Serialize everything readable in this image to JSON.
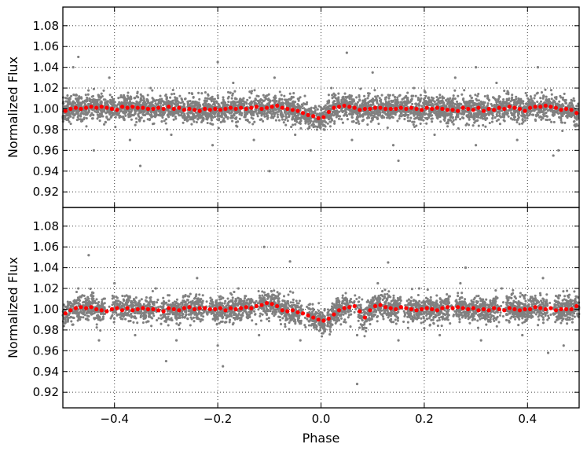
{
  "chart_data": [
    {
      "type": "scatter",
      "panel": "top",
      "xlabel": "",
      "ylabel": "Normalized Flux",
      "xlim": [
        -0.5,
        0.5
      ],
      "ylim": [
        0.905,
        1.098
      ],
      "xticks": [
        -0.4,
        -0.2,
        0.0,
        0.2,
        0.4
      ],
      "yticks": [
        0.92,
        0.94,
        0.96,
        0.98,
        1.0,
        1.02,
        1.04,
        1.06,
        1.08
      ],
      "xtick_labels": [],
      "ytick_labels": [
        "0.92",
        "0.94",
        "0.96",
        "0.98",
        "1.00",
        "1.02",
        "1.04",
        "1.06",
        "1.08"
      ],
      "grid": true,
      "colors": {
        "raw": "#808080",
        "binned": "#ff0000"
      },
      "series": [
        {
          "marker": "small-gray-dots",
          "color": "#808080",
          "x": [
            -0.48,
            -0.44,
            -0.41,
            -0.37,
            -0.33,
            -0.29,
            -0.25,
            -0.21,
            -0.17,
            -0.13,
            -0.09,
            -0.05,
            -0.02,
            0.02,
            0.06,
            0.1,
            0.14,
            0.18,
            0.22,
            0.26,
            0.3,
            0.34,
            0.38,
            0.42,
            0.46,
            -0.47,
            -0.35,
            -0.2,
            -0.1,
            0.05,
            0.15,
            0.3,
            0.45,
            -0.42,
            -0.15,
            0.1,
            0.35,
            -0.3,
            0.0,
            0.25,
            -0.45,
            -0.25,
            -0.05,
            0.12,
            0.4
          ],
          "y": [
            1.04,
            0.96,
            1.03,
            0.97,
            1.02,
            0.975,
            1.015,
            0.965,
            1.025,
            0.97,
            1.03,
            0.975,
            0.96,
            1.02,
            0.97,
            1.035,
            0.965,
            1.02,
            0.975,
            1.03,
            0.965,
            1.025,
            0.97,
            1.04,
            0.96,
            1.05,
            0.945,
            1.045,
            0.94,
            1.054,
            0.95,
            1.04,
            0.955,
            0.985,
            1.01,
            0.99,
            1.005,
            0.99,
            0.985,
            1.01,
            1.0,
            0.99,
            0.985,
            1.005,
            1.0
          ]
        },
        {
          "marker": "red-dots",
          "color": "#ff0000",
          "x": [
            -0.495,
            -0.485,
            -0.475,
            -0.465,
            -0.455,
            -0.445,
            -0.435,
            -0.425,
            -0.415,
            -0.405,
            -0.395,
            -0.385,
            -0.375,
            -0.365,
            -0.355,
            -0.345,
            -0.335,
            -0.325,
            -0.315,
            -0.305,
            -0.295,
            -0.285,
            -0.275,
            -0.265,
            -0.255,
            -0.245,
            -0.235,
            -0.225,
            -0.215,
            -0.205,
            -0.195,
            -0.185,
            -0.175,
            -0.165,
            -0.155,
            -0.145,
            -0.135,
            -0.125,
            -0.115,
            -0.105,
            -0.095,
            -0.085,
            -0.075,
            -0.065,
            -0.055,
            -0.045,
            -0.035,
            -0.025,
            -0.015,
            -0.005,
            0.005,
            0.015,
            0.025,
            0.035,
            0.045,
            0.055,
            0.065,
            0.075,
            0.085,
            0.095,
            0.105,
            0.115,
            0.125,
            0.135,
            0.145,
            0.155,
            0.165,
            0.175,
            0.185,
            0.195,
            0.205,
            0.215,
            0.225,
            0.235,
            0.245,
            0.255,
            0.265,
            0.275,
            0.285,
            0.295,
            0.305,
            0.315,
            0.325,
            0.335,
            0.345,
            0.355,
            0.365,
            0.375,
            0.385,
            0.395,
            0.405,
            0.415,
            0.425,
            0.435,
            0.445,
            0.455,
            0.465,
            0.475,
            0.485,
            0.495
          ],
          "y": [
            0.998,
            1.0,
            1.001,
            1.0,
            1.001,
            1.002,
            1.001,
            1.002,
            1.001,
            1.0,
            0.999,
            1.002,
            1.001,
            1.002,
            1.001,
            1.001,
            1.0,
            1.0,
            1.001,
            1.0,
            1.002,
            1.0,
            1.001,
            0.999,
            1.0,
            0.999,
            0.998,
            1.0,
            0.999,
            1.0,
            0.999,
            1.0,
            1.001,
            1.0,
            1.001,
            1.0,
            1.001,
            1.002,
            1.0,
            1.001,
            1.002,
            1.003,
            1.001,
            1.0,
            0.999,
            0.998,
            0.996,
            0.994,
            0.993,
            0.991,
            0.992,
            0.997,
            1.001,
            1.002,
            1.003,
            1.002,
            1.001,
            0.999,
            1.0,
            1.0,
            1.001,
            1.001,
            1.0,
            1.0,
            1.0,
            1.001,
            1.0,
            1.001,
            1.0,
            0.999,
            1.001,
            1.0,
            1.001,
            1.0,
            0.999,
            0.999,
            0.998,
            1.001,
            1.0,
            0.999,
            1.001,
            0.998,
            1.0,
            0.999,
            1.001,
            1.0,
            1.002,
            1.001,
            1.0,
            0.998,
            1.001,
            1.002,
            1.002,
            1.003,
            1.002,
            1.001,
            0.999,
            1.0,
            0.999,
            0.996
          ]
        }
      ]
    },
    {
      "type": "scatter",
      "panel": "bottom",
      "xlabel": "Phase",
      "ylabel": "Normalized Flux",
      "xlim": [
        -0.5,
        0.5
      ],
      "ylim": [
        0.905,
        1.098
      ],
      "xticks": [
        -0.4,
        -0.2,
        0.0,
        0.2,
        0.4
      ],
      "yticks": [
        0.92,
        0.94,
        0.96,
        0.98,
        1.0,
        1.02,
        1.04,
        1.06,
        1.08
      ],
      "xtick_labels": [
        "−0.4",
        "−0.2",
        "0.0",
        "0.2",
        "0.4"
      ],
      "ytick_labels": [
        "0.92",
        "0.94",
        "0.96",
        "0.98",
        "1.00",
        "1.02",
        "1.04",
        "1.06",
        "1.08"
      ],
      "grid": true,
      "colors": {
        "raw": "#808080",
        "binned": "#ff0000"
      },
      "series": [
        {
          "marker": "small-gray-dots",
          "color": "#808080",
          "x": [
            -0.47,
            -0.43,
            -0.4,
            -0.36,
            -0.32,
            -0.28,
            -0.24,
            -0.2,
            -0.16,
            -0.12,
            -0.08,
            -0.04,
            0.03,
            0.07,
            0.11,
            0.15,
            0.19,
            0.23,
            0.27,
            0.31,
            0.35,
            0.39,
            0.43,
            0.47,
            -0.45,
            -0.3,
            -0.19,
            -0.11,
            -0.06,
            0.13,
            0.28,
            0.44,
            0.07,
            -0.38,
            -0.22,
            -0.02,
            0.09,
            0.33
          ],
          "y": [
            1.02,
            0.97,
            1.025,
            0.975,
            1.02,
            0.97,
            1.03,
            0.965,
            1.02,
            0.975,
            1.015,
            0.97,
            1.01,
            0.975,
            1.025,
            0.97,
            1.02,
            0.975,
            1.025,
            0.97,
            1.02,
            0.975,
            1.03,
            0.965,
            1.052,
            0.95,
            0.945,
            1.06,
            1.046,
            1.045,
            1.04,
            0.958,
            0.928,
            1.0,
            0.995,
            0.99,
            1.0,
            1.0
          ]
        },
        {
          "marker": "red-dots",
          "color": "#ff0000",
          "x": [
            -0.495,
            -0.485,
            -0.475,
            -0.465,
            -0.455,
            -0.445,
            -0.435,
            -0.425,
            -0.415,
            -0.405,
            -0.395,
            -0.385,
            -0.375,
            -0.365,
            -0.355,
            -0.345,
            -0.335,
            -0.325,
            -0.315,
            -0.305,
            -0.295,
            -0.285,
            -0.275,
            -0.265,
            -0.255,
            -0.245,
            -0.235,
            -0.225,
            -0.215,
            -0.205,
            -0.195,
            -0.185,
            -0.175,
            -0.165,
            -0.155,
            -0.145,
            -0.135,
            -0.125,
            -0.115,
            -0.105,
            -0.095,
            -0.085,
            -0.075,
            -0.065,
            -0.055,
            -0.045,
            -0.035,
            -0.025,
            -0.015,
            -0.005,
            0.005,
            0.015,
            0.025,
            0.035,
            0.045,
            0.055,
            0.065,
            0.075,
            0.085,
            0.095,
            0.105,
            0.115,
            0.125,
            0.135,
            0.145,
            0.155,
            0.165,
            0.175,
            0.185,
            0.195,
            0.205,
            0.215,
            0.225,
            0.235,
            0.245,
            0.255,
            0.265,
            0.275,
            0.285,
            0.295,
            0.305,
            0.315,
            0.325,
            0.335,
            0.345,
            0.355,
            0.365,
            0.375,
            0.385,
            0.395,
            0.405,
            0.415,
            0.425,
            0.435,
            0.445,
            0.455,
            0.465,
            0.475,
            0.485,
            0.495
          ],
          "y": [
            0.996,
            0.999,
            1.001,
            1.002,
            1.001,
            1.002,
            1.0,
            0.999,
            0.998,
            1.0,
            1.001,
            0.999,
            1.001,
            0.999,
            1.0,
            1.001,
            1.0,
            1.0,
            0.999,
            0.998,
            1.001,
            1.0,
            0.999,
            1.001,
            1.002,
            1.0,
            1.001,
            1.001,
            1.0,
            1.0,
            1.001,
            0.999,
            1.001,
            1.0,
            1.001,
            1.002,
            1.001,
            1.003,
            1.004,
            1.006,
            1.005,
            1.003,
            0.999,
            0.998,
            0.999,
            0.997,
            0.996,
            0.994,
            0.992,
            0.99,
            0.989,
            0.991,
            0.995,
            0.999,
            1.001,
            1.002,
            1.003,
            0.998,
            0.992,
            0.999,
            1.003,
            1.004,
            1.002,
            1.001,
            1.0,
            1.002,
            1.001,
            1.0,
            0.999,
            1.0,
            1.001,
            1.0,
            0.999,
            1.001,
            1.002,
            1.001,
            1.002,
            1.001,
            1.0,
            1.001,
            0.999,
            1.0,
            0.999,
            1.001,
            1.0,
            0.999,
            1.001,
            1.0,
            0.999,
            1.0,
            1.0,
            1.002,
            1.001,
            1.0,
            1.001,
            0.999,
            1.0,
            1.0,
            1.0,
            1.003
          ]
        }
      ]
    }
  ]
}
